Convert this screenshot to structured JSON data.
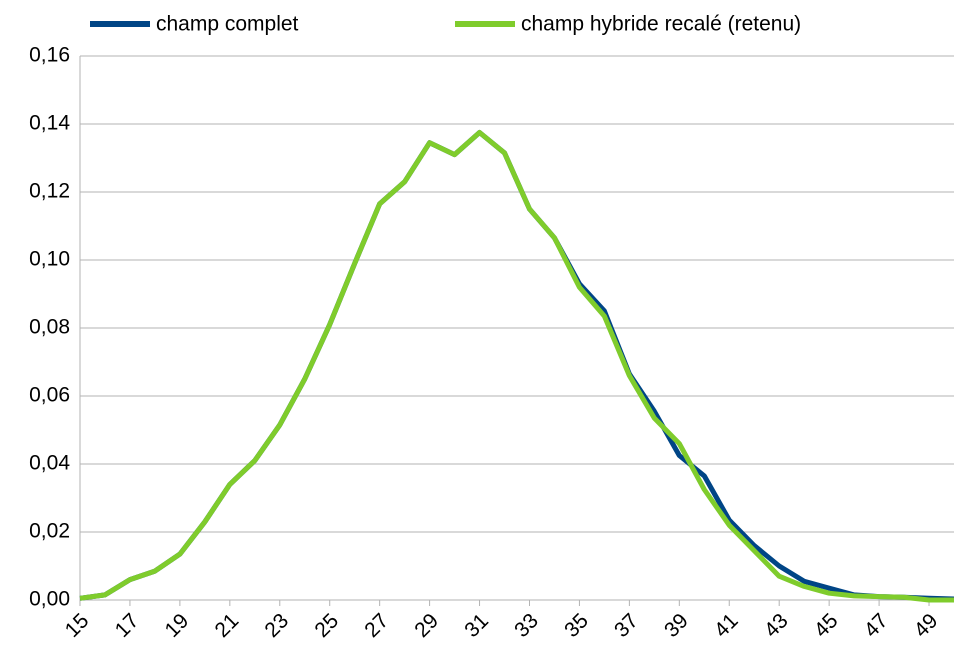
{
  "chart_data": {
    "type": "line",
    "x": [
      15,
      16,
      17,
      18,
      19,
      20,
      21,
      22,
      23,
      24,
      25,
      26,
      27,
      28,
      29,
      30,
      31,
      32,
      33,
      34,
      35,
      36,
      37,
      38,
      39,
      40,
      41,
      42,
      43,
      44,
      45,
      46,
      47,
      48,
      49,
      50
    ],
    "series": [
      {
        "name": "champ complet",
        "color": "#004586",
        "values": [
          0.0005,
          0.0015,
          0.006,
          0.0085,
          0.0135,
          0.023,
          0.034,
          0.041,
          0.0515,
          0.065,
          0.081,
          0.099,
          0.1165,
          0.123,
          0.1345,
          0.131,
          0.1375,
          0.1315,
          0.115,
          0.1065,
          0.093,
          0.085,
          0.0665,
          0.0555,
          0.0425,
          0.0365,
          0.0235,
          0.016,
          0.01,
          0.0055,
          0.0035,
          0.0015,
          0.001,
          0.0008,
          0.0005,
          0.0003
        ]
      },
      {
        "name": "champ hybride recalé (retenu)",
        "color": "#7fcc2c",
        "values": [
          0.0005,
          0.0015,
          0.006,
          0.0085,
          0.0135,
          0.023,
          0.034,
          0.041,
          0.0515,
          0.065,
          0.081,
          0.099,
          0.1165,
          0.123,
          0.1345,
          0.131,
          0.1375,
          0.1315,
          0.115,
          0.1065,
          0.092,
          0.0835,
          0.066,
          0.0535,
          0.046,
          0.0325,
          0.022,
          0.0145,
          0.007,
          0.004,
          0.002,
          0.0012,
          0.001,
          0.0008,
          0,
          0
        ]
      }
    ],
    "xlim": [
      15,
      50
    ],
    "xticks": [
      15,
      17,
      19,
      21,
      23,
      25,
      27,
      29,
      31,
      33,
      35,
      37,
      39,
      41,
      43,
      45,
      47,
      49
    ],
    "ylim": [
      0,
      0.16
    ],
    "yticks": [
      {
        "value": 0,
        "label": "0,00"
      },
      {
        "value": 0.02,
        "label": "0,02"
      },
      {
        "value": 0.04,
        "label": "0,04"
      },
      {
        "value": 0.06,
        "label": "0,06"
      },
      {
        "value": 0.08,
        "label": "0,08"
      },
      {
        "value": 0.1,
        "label": "0,10"
      },
      {
        "value": 0.12,
        "label": "0,12"
      },
      {
        "value": 0.14,
        "label": "0,14"
      },
      {
        "value": 0.16,
        "label": "0,16"
      }
    ],
    "grid": true,
    "legend": "top"
  }
}
